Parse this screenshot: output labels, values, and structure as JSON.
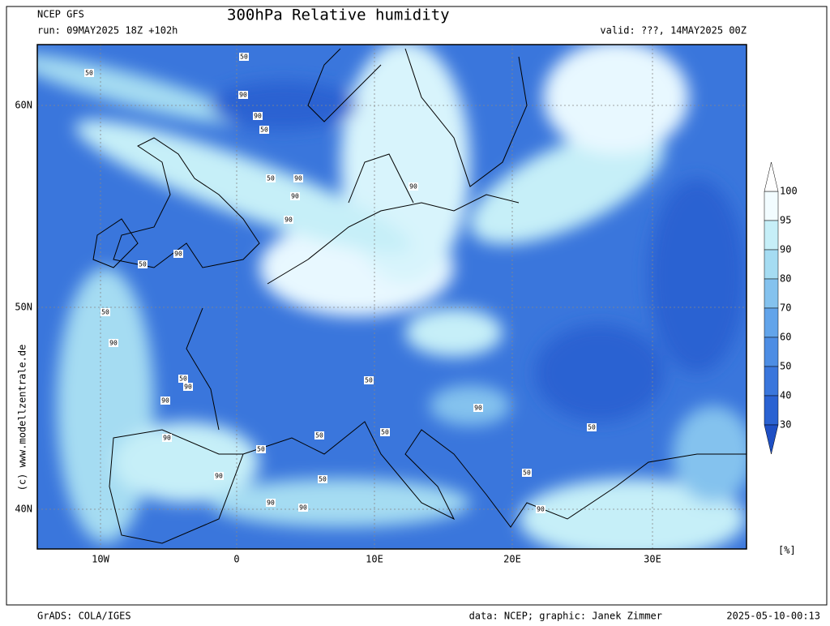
{
  "header": {
    "model": "NCEP GFS",
    "title": "300hPa Relative humidity",
    "run": "run: 09MAY2025 18Z +102h",
    "valid": "valid: ???, 14MAY2025 00Z"
  },
  "map": {
    "lat_labels": [
      "60N",
      "50N",
      "40N"
    ],
    "lon_labels": [
      "10W",
      "0",
      "10E",
      "20E",
      "30E"
    ],
    "side_text": "(c) www.modellzentrale.de",
    "contour_labels": [
      "50",
      "50",
      "90",
      "90",
      "50",
      "50",
      "90",
      "90",
      "90",
      "90",
      "50",
      "90",
      "50",
      "90",
      "50",
      "90",
      "50",
      "90",
      "50",
      "90",
      "50",
      "50",
      "90",
      "50",
      "90",
      "50",
      "90",
      "90",
      "50",
      "90"
    ]
  },
  "colorbar": {
    "levels": [
      100,
      95,
      90,
      80,
      70,
      60,
      50,
      40,
      30
    ],
    "colors": [
      "#f2fcff",
      "#c6eff8",
      "#a5dcf2",
      "#84c2ee",
      "#62a4ea",
      "#4d8de4",
      "#3a76dc",
      "#2a62d2"
    ],
    "over_color": "#ffffff",
    "under_color": "#1e4fc4",
    "unit": "[%]"
  },
  "footer": {
    "left": "GrADS: COLA/IGES",
    "credit": "data: NCEP; graphic: Janek Zimmer",
    "timestamp": "2025-05-10-00:13"
  }
}
